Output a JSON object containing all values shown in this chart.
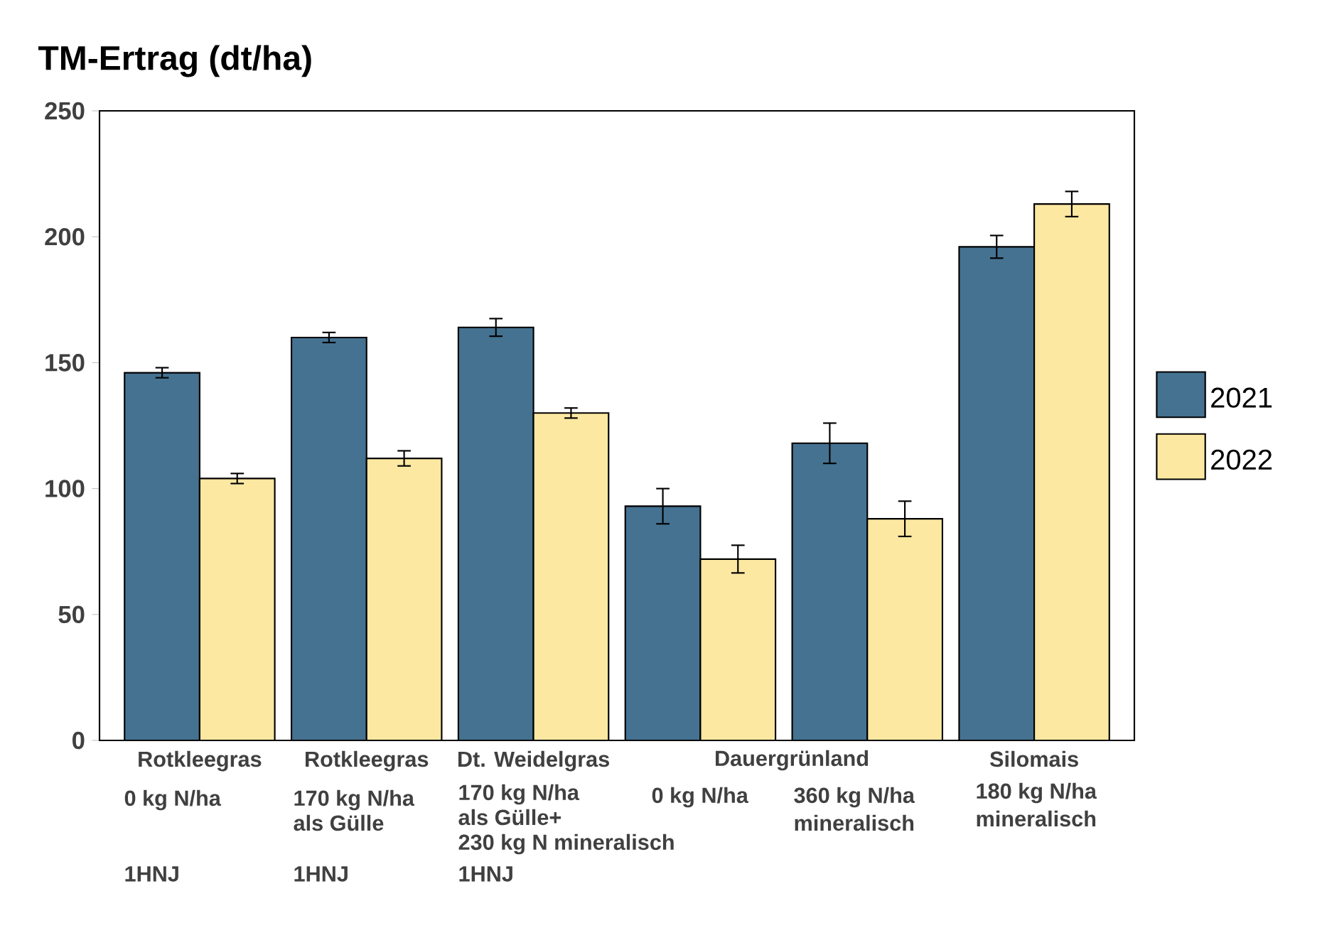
{
  "chart_data": {
    "type": "bar",
    "title": "TM-Ertrag (dt/ha)",
    "categories": [
      "Rotkleegras",
      "Rotkleegras",
      "Dt. Weidelgras",
      null,
      null,
      "Silomais"
    ],
    "series": [
      {
        "name": "2021",
        "color": "#457291",
        "values": [
          146,
          160,
          164,
          93,
          118,
          196
        ],
        "errors": [
          2,
          2,
          3.5,
          7,
          8,
          4.5
        ]
      },
      {
        "name": "2022",
        "color": "#fde8a2",
        "values": [
          104,
          112,
          130,
          72,
          88,
          213
        ],
        "errors": [
          2,
          3,
          2,
          5.5,
          7,
          5
        ]
      }
    ],
    "ylim": [
      0,
      250
    ],
    "yticks": [
      0,
      50,
      100,
      150,
      200,
      250
    ],
    "legend": "right",
    "annotations": [
      "Dauergrünland",
      "0 kg N/ha",
      "170 kg N/ha",
      "als Gülle",
      "170 kg N/ha",
      "als Gülle+",
      "230 kg N mineralisch",
      "0 kg N/ha",
      "360 kg N/ha",
      "mineralisch",
      "180 kg N/ha",
      "mineralisch",
      "1HNJ",
      "1HNJ",
      "1HNJ"
    ]
  }
}
